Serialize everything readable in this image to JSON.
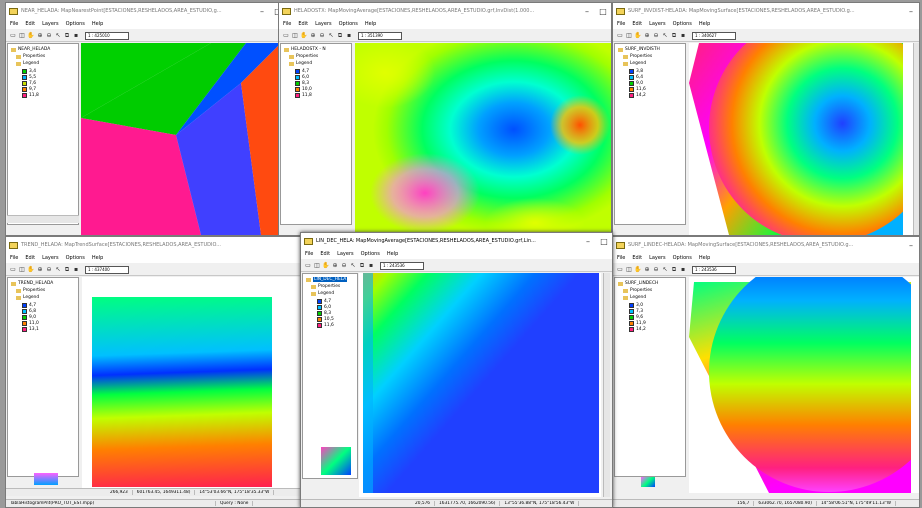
{
  "menu": [
    "File",
    "Edit",
    "Layers",
    "Options",
    "Help"
  ],
  "windows": [
    {
      "title": "NEAR_HELADA: MapNearestPoint[ESTACIONES,RESHELADOS,AREA_ESTUDIO,g...",
      "scale": "1 : 425010",
      "layer": "NEAR_HELADA",
      "legend": [
        "3,4",
        "5,5",
        "7,6",
        "9,7",
        "11,8"
      ]
    },
    {
      "title": "HELADOSTX: MapMovingAverage[ESTACIONES,RESHELADOS,AREA_ESTUDIO.grf,InvDist(1.000...",
      "scale": "1 : 351390",
      "layer": "HELADOSTX - N",
      "legend": [
        "4,7",
        "6,0",
        "8,3",
        "10,0",
        "11,8"
      ]
    },
    {
      "title": "SURF_INVDIST-HELADA: MapMovingSurface[ESTACIONES,RESHELADOS,AREA_ESTUDIO.g...",
      "scale": "1 : 340627",
      "layer": "SURF_INVDISTH",
      "legend": [
        "3,8",
        "6,4",
        "9,0",
        "11,6",
        "14,2"
      ]
    },
    {
      "title": "TREND_HELADA: MapTrendSurface[ESTACIONES,RESHELADOS,AREA_ESTUDIO...",
      "scale": "1 : 437400",
      "layer": "TREND_HELADA",
      "legend": [
        "4,7",
        "6,8",
        "9,0",
        "11,0",
        "13,1"
      ],
      "status": [
        "266,923",
        "601763.45, 1649311.48)",
        "14°53'03.66\"N, 175°18'35.33\"W"
      ],
      "bottom": "TablaHistogramPnt(PRO_TOT_EST.mpp)",
      "query": "Query : None"
    },
    {
      "title": "LIN_DEC_HELA: MapMovingAverage[ESTACIONES,RESHELADOS,AREA_ESTUDIO.grf,Lin...",
      "scale": "1 : 243536",
      "layer": "LIN_DEC_HELA",
      "legend": [
        "4,7",
        "6,0",
        "8,3",
        "10,5",
        "11,6"
      ],
      "status": [
        "20,576",
        "1631775.70, 1662090.56)",
        "13°55'36.88\"N, 175°18'56.43\"W"
      ]
    },
    {
      "title": "SURF_LINDEC-HELADA: MapMovingSurface[ESTACIONES,RESHELADOS,AREA_ESTUDIO.g...",
      "scale": "1 : 243536",
      "layer": "SURF_LINDECH",
      "legend": [
        "3,0",
        "7,3",
        "9,6",
        "11,9",
        "14,2"
      ],
      "status": [
        "156,7",
        "633062.70, 1657080.90)",
        "14°58'06.51\"N, 175°49'11.13\"W"
      ]
    }
  ],
  "props_label": "Properties",
  "legend_label": "Legend",
  "colors": {
    "legend": [
      "#00d000",
      "#00b0ff",
      "#c8e000",
      "#ff8000",
      "#ff2080"
    ]
  }
}
